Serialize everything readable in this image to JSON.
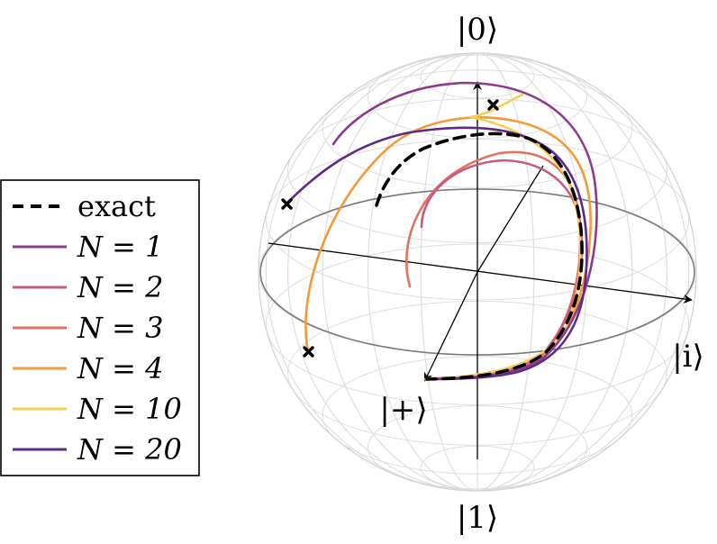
{
  "axis_labels": {
    "top": "|0⟩",
    "bottom": "|1⟩",
    "x": "|+⟩",
    "y": "|i⟩"
  },
  "legend": {
    "items": [
      {
        "label": "exact",
        "style": "dashed",
        "color": "#000000"
      },
      {
        "label": "N = 1",
        "style": "solid",
        "color": "#8e3a8c"
      },
      {
        "label": "N = 2",
        "style": "solid",
        "color": "#c45a86"
      },
      {
        "label": "N = 3",
        "style": "solid",
        "color": "#e0735f"
      },
      {
        "label": "N = 4",
        "style": "solid",
        "color": "#f29a3a"
      },
      {
        "label": "N = 10",
        "style": "solid",
        "color": "#f7ce55"
      },
      {
        "label": "N = 20",
        "style": "solid",
        "color": "#5e2b84"
      }
    ]
  },
  "colors": {
    "sphere_grid": "#dddddd",
    "equator": "#7a7a7a",
    "axes": "#000000",
    "markers": "#000000"
  }
}
